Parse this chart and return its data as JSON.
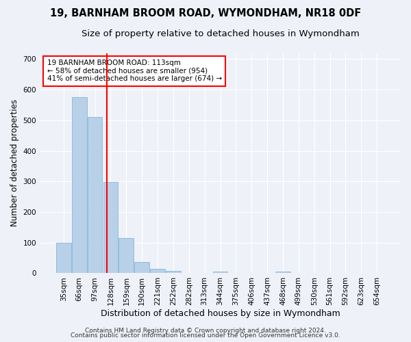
{
  "title": "19, BARNHAM BROOM ROAD, WYMONDHAM, NR18 0DF",
  "subtitle": "Size of property relative to detached houses in Wymondham",
  "xlabel": "Distribution of detached houses by size in Wymondham",
  "ylabel": "Number of detached properties",
  "categories": [
    "35sqm",
    "66sqm",
    "97sqm",
    "128sqm",
    "159sqm",
    "190sqm",
    "221sqm",
    "252sqm",
    "282sqm",
    "313sqm",
    "344sqm",
    "375sqm",
    "406sqm",
    "437sqm",
    "468sqm",
    "499sqm",
    "530sqm",
    "561sqm",
    "592sqm",
    "623sqm",
    "654sqm"
  ],
  "values": [
    100,
    575,
    510,
    298,
    115,
    37,
    15,
    8,
    0,
    0,
    5,
    0,
    0,
    0,
    5,
    0,
    0,
    0,
    0,
    0,
    0
  ],
  "bar_color": "#b8d0e8",
  "bar_edge_color": "#7aafd4",
  "red_line_x": 2.78,
  "annotation_text": "19 BARNHAM BROOM ROAD: 113sqm\n← 58% of detached houses are smaller (954)\n41% of semi-detached houses are larger (674) →",
  "annotation_box_color": "white",
  "annotation_box_edge_color": "red",
  "red_line_color": "red",
  "ylim": [
    0,
    720
  ],
  "yticks": [
    0,
    100,
    200,
    300,
    400,
    500,
    600,
    700
  ],
  "footer_line1": "Contains HM Land Registry data © Crown copyright and database right 2024.",
  "footer_line2": "Contains public sector information licensed under the Open Government Licence v3.0.",
  "background_color": "#eef2f8",
  "grid_color": "white",
  "title_fontsize": 10.5,
  "subtitle_fontsize": 9.5,
  "xlabel_fontsize": 9,
  "ylabel_fontsize": 8.5,
  "tick_fontsize": 7.5,
  "annot_fontsize": 7.5,
  "footer_fontsize": 6.5
}
